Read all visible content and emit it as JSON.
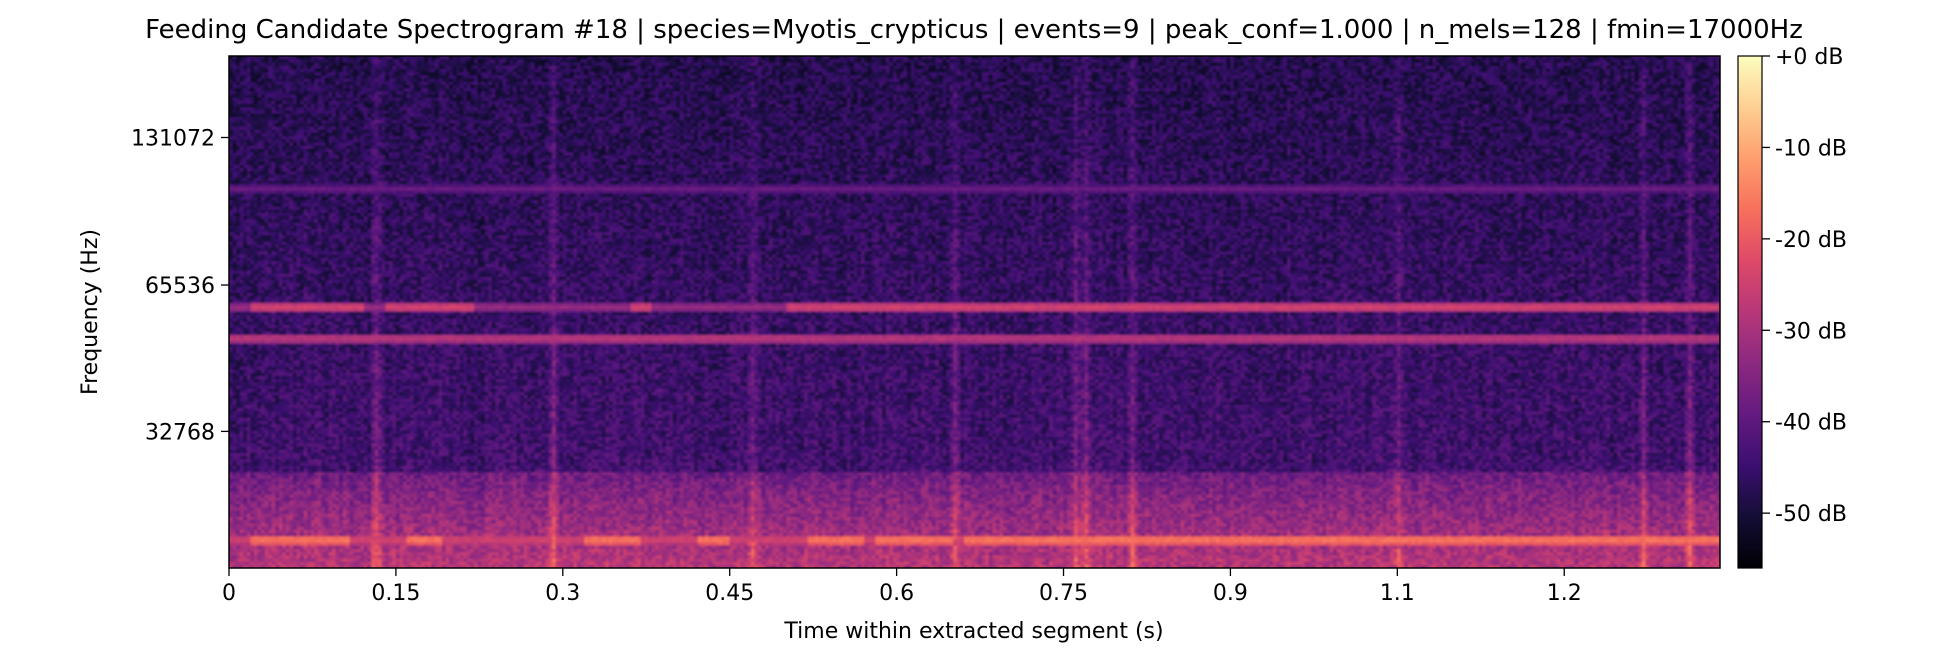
{
  "chart_data": {
    "type": "heatmap",
    "title": "Feeding Candidate Spectrogram #18 | species=Myotis_crypticus | events=9 | peak_conf=1.000 | n_mels=128 | fmin=17000Hz",
    "xlabel": "Time within extracted segment (s)",
    "ylabel": "Frequency (Hz)",
    "x_ticks": [
      0,
      0.15,
      0.3,
      0.45,
      0.6,
      0.75,
      0.9,
      1.05,
      1.2
    ],
    "x_tick_labels": [
      "0",
      "0.15",
      "0.3",
      "0.45",
      "0.6",
      "0.75",
      "0.9",
      "1.1",
      "1.2"
    ],
    "xlim": [
      0,
      1.34
    ],
    "y_scale": "mel",
    "y_ticks": [
      32768,
      65536,
      131072
    ],
    "y_tick_labels": [
      "32768",
      "65536",
      "131072"
    ],
    "ylim": [
      17000,
      192000
    ],
    "colormap": "magma",
    "colorbar": {
      "ticks": [
        0,
        -10,
        -20,
        -30,
        -40,
        -50
      ],
      "tick_labels": [
        "+0 dB",
        "-10 dB",
        "-20 dB",
        "-30 dB",
        "-40 dB",
        "-50 dB"
      ],
      "range": [
        -56,
        0
      ]
    },
    "features": {
      "background_level_db": -43,
      "horizontal_bands": [
        {
          "freq_hz": 19500,
          "level_db": -15,
          "segments": [
            [
              0.02,
              0.11
            ],
            [
              0.16,
              0.19
            ],
            [
              0.32,
              0.37
            ],
            [
              0.42,
              0.45
            ],
            [
              0.52,
              0.57
            ],
            [
              0.58,
              0.65
            ],
            [
              0.66,
              1.34
            ]
          ]
        },
        {
          "freq_hz": 51000,
          "level_db": -27,
          "segments": [
            [
              0.0,
              1.34
            ]
          ]
        },
        {
          "freq_hz": 59000,
          "level_db": -24,
          "segments": [
            [
              0.02,
              0.12
            ],
            [
              0.14,
              0.22
            ],
            [
              0.36,
              0.38
            ],
            [
              0.5,
              1.34
            ]
          ]
        },
        {
          "freq_hz": 103000,
          "level_db": -38,
          "segments": [
            [
              0.0,
              1.34
            ]
          ]
        }
      ],
      "vertical_streaks_s": [
        0.13,
        0.29,
        0.47,
        0.65,
        0.76,
        0.77,
        0.81,
        1.05,
        1.27,
        1.31
      ],
      "low_frequency_energy": {
        "below_hz": 27000,
        "level_db": -28
      }
    }
  }
}
